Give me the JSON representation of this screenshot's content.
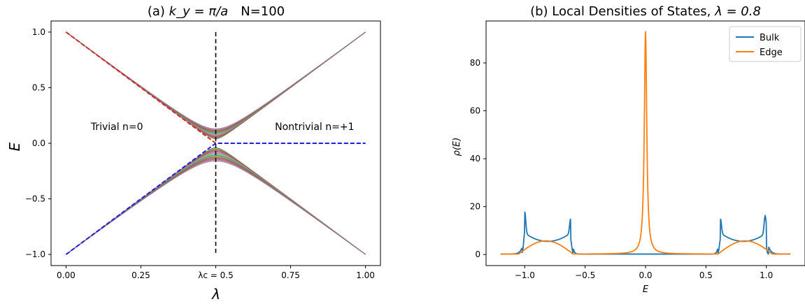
{
  "chart_data": [
    {
      "type": "line",
      "title_prefix": "(a) ",
      "title_math": "k_y = π/a",
      "title_suffix": "N=100",
      "xlabel": "λ",
      "ylabel": "E",
      "xlim": [
        -0.05,
        1.05
      ],
      "ylim": [
        -1.1,
        1.1
      ],
      "xticks": [
        {
          "value": 0.0,
          "label": "0.00"
        },
        {
          "value": 0.25,
          "label": "0.25"
        },
        {
          "value": 0.5,
          "label": "λc = 0.5"
        },
        {
          "value": 0.75,
          "label": "0.75"
        },
        {
          "value": 1.0,
          "label": "1.00"
        }
      ],
      "yticks": [
        {
          "value": 1.0,
          "label": "1.0"
        },
        {
          "value": 0.5,
          "label": "0.5"
        },
        {
          "value": 0.0,
          "label": "0.0"
        },
        {
          "value": -0.5,
          "label": "−0.5"
        },
        {
          "value": -1.0,
          "label": "−1.0"
        }
      ],
      "annotations": [
        {
          "text": "Trivial n=0",
          "x": 0.17,
          "y": 0.12
        },
        {
          "text": "Nontrivial n=+1",
          "x": 0.83,
          "y": 0.12
        }
      ],
      "critical_line": {
        "x": 0.5,
        "y_range": [
          -1.0,
          1.0
        ],
        "style": "dashed"
      },
      "bulk_bands": {
        "description_colors": [
          "#1f77b4",
          "#ff7f0e",
          "#2ca02c",
          "#d62728",
          "#9467bd",
          "#8c564b",
          "#e377c2",
          "#7f7f7f",
          "#bcbd22",
          "#17becf"
        ],
        "upper_gap_at_critical": 0.04,
        "upper_spread_at_critical": [
          0.04,
          0.13
        ],
        "lower_spread_at_critical": [
          -0.04,
          -0.16
        ],
        "endpoints": [
          {
            "lambda": 0.0,
            "E_upper": 1.0,
            "E_lower": -1.0
          },
          {
            "lambda": 1.0,
            "E_upper": 1.0,
            "E_lower": -1.0
          }
        ]
      },
      "edge_states": [
        {
          "name": "",
          "color": "#d62728",
          "style": "dashed",
          "points": [
            [
              0.0,
              1.0
            ],
            [
              0.5,
              0.0
            ],
            [
              1.0,
              0.0
            ]
          ]
        },
        {
          "name": "",
          "color": "#1f1fe0",
          "style": "dashed",
          "points": [
            [
              0.0,
              -1.0
            ],
            [
              0.5,
              0.0
            ],
            [
              1.0,
              0.0
            ]
          ]
        }
      ]
    },
    {
      "type": "line",
      "title_prefix": "(b) Local Densities of States, ",
      "title_math": "λ = 0.8",
      "xlabel": "E",
      "ylabel": "ρ(E)",
      "xlim": [
        -1.32,
        1.32
      ],
      "ylim": [
        -4.6,
        97.5
      ],
      "xticks": [
        {
          "value": -1.0,
          "label": "−1.0"
        },
        {
          "value": -0.5,
          "label": "−0.5"
        },
        {
          "value": 0.0,
          "label": "0.0"
        },
        {
          "value": 0.5,
          "label": "0.5"
        },
        {
          "value": 1.0,
          "label": "1.0"
        }
      ],
      "yticks": [
        {
          "value": 0,
          "label": "0"
        },
        {
          "value": 20,
          "label": "20"
        },
        {
          "value": 40,
          "label": "40"
        },
        {
          "value": 60,
          "label": "60"
        },
        {
          "value": 80,
          "label": "80"
        }
      ],
      "legend": "top-right",
      "series": [
        {
          "name": "Bulk",
          "color": "#1f77b4",
          "peaks": [
            {
              "E": -1.0,
              "rho": 14.5
            },
            {
              "E": -0.62,
              "rho": 11.5
            },
            {
              "E": 0.62,
              "rho": 11.5
            },
            {
              "E": 0.99,
              "rho": 13.0
            }
          ],
          "plateau": 5.5,
          "range": [
            -1.2,
            1.2
          ]
        },
        {
          "name": "Edge",
          "color": "#ff7f0e",
          "peaks": [
            {
              "E": 0.0,
              "rho": 93.0
            },
            {
              "E": -0.85,
              "rho": 5.5
            },
            {
              "E": 0.85,
              "rho": 5.5
            }
          ],
          "range": [
            -1.2,
            1.2
          ]
        }
      ]
    }
  ]
}
